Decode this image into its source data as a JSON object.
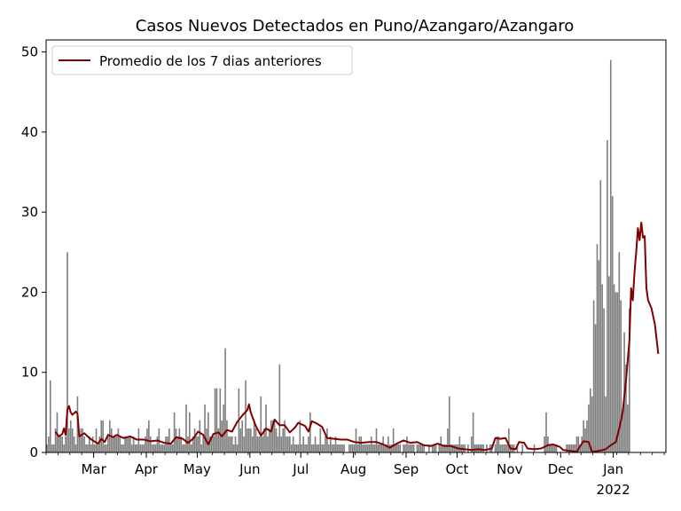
{
  "chart_data": {
    "type": "bar",
    "title": "Casos Nuevos Detectados en Puno/Azangaro/Azangaro",
    "xlabel": "",
    "ylabel": "",
    "x_range": [
      "2021-02-01",
      "2022-01-31"
    ],
    "ylim": [
      0,
      51.5
    ],
    "grid": false,
    "legend_placement": "top-left",
    "x_tick_labels": [
      {
        "date": "2021-03-01",
        "label": "Mar"
      },
      {
        "date": "2021-04-01",
        "label": "Apr"
      },
      {
        "date": "2021-05-01",
        "label": "May"
      },
      {
        "date": "2021-06-01",
        "label": "Jun"
      },
      {
        "date": "2021-07-01",
        "label": "Jul"
      },
      {
        "date": "2021-08-01",
        "label": "Aug"
      },
      {
        "date": "2021-09-01",
        "label": "Sep"
      },
      {
        "date": "2021-10-01",
        "label": "Oct"
      },
      {
        "date": "2021-11-01",
        "label": "Nov"
      },
      {
        "date": "2021-12-01",
        "label": "Dec"
      },
      {
        "date": "2022-01-01",
        "label": "Jan"
      }
    ],
    "x_year_label": {
      "date": "2022-01-01",
      "label": "2022"
    },
    "y_ticks": [
      0,
      10,
      20,
      30,
      40,
      50
    ],
    "bar_color": "#808080",
    "line_color": "#800000",
    "bar_series": {
      "start": "2021-02-01",
      "values": [
        1,
        2,
        9,
        1,
        1,
        3,
        5,
        2,
        2,
        2,
        1,
        2,
        25,
        3,
        4,
        3,
        2,
        1,
        7,
        2,
        3,
        3,
        2,
        1,
        1,
        2,
        1,
        2,
        1,
        3,
        1,
        2,
        4,
        4,
        1,
        1,
        2,
        4,
        3,
        2,
        2,
        2,
        3,
        2,
        1,
        1,
        2,
        2,
        2,
        2,
        1,
        2,
        1,
        1,
        3,
        1,
        1,
        1,
        2,
        3,
        4,
        2,
        1,
        1,
        1,
        2,
        3,
        1,
        1,
        1,
        2,
        2,
        3,
        1,
        1,
        5,
        3,
        2,
        3,
        2,
        1,
        1,
        6,
        2,
        5,
        1,
        2,
        3,
        2,
        2,
        4,
        1,
        2,
        6,
        3,
        5,
        2,
        2,
        2,
        8,
        8,
        3,
        8,
        4,
        6,
        13,
        4,
        2,
        2,
        2,
        1,
        2,
        1,
        8,
        3,
        4,
        2,
        9,
        3,
        3,
        3,
        2,
        4,
        3,
        2,
        2,
        7,
        2,
        3,
        6,
        2,
        3,
        4,
        4,
        4,
        3,
        2,
        11,
        2,
        3,
        4,
        2,
        2,
        2,
        1,
        2,
        1,
        1,
        1,
        4,
        1,
        2,
        1,
        1,
        2,
        5,
        1,
        1,
        2,
        1,
        1,
        3,
        1,
        1,
        2,
        3,
        1,
        2,
        1,
        1,
        2,
        1,
        1,
        1,
        1,
        1,
        0,
        0,
        1,
        1,
        1,
        1,
        3,
        1,
        2,
        2,
        1,
        1,
        1,
        1,
        1,
        2,
        1,
        1,
        3,
        1,
        1,
        1,
        2,
        1,
        1,
        2,
        1,
        1,
        3,
        1,
        1,
        1,
        1,
        0,
        1,
        1,
        2,
        1,
        1,
        1,
        1,
        0,
        1,
        1,
        1,
        1,
        1,
        0,
        0,
        1,
        0,
        1,
        1,
        1,
        0,
        1,
        2,
        1,
        1,
        1,
        3,
        7,
        1,
        1,
        1,
        1,
        1,
        2,
        1,
        1,
        1,
        0,
        1,
        0,
        2,
        5,
        1,
        1,
        1,
        1,
        1,
        1,
        0,
        1,
        0,
        1,
        1,
        0,
        1,
        2,
        2,
        1,
        1,
        1,
        1,
        1,
        3,
        1,
        1,
        1,
        0,
        1,
        0,
        0,
        1,
        0,
        0,
        0,
        0,
        0,
        0,
        1,
        0,
        0,
        0,
        0,
        0,
        2,
        5,
        2,
        1,
        1,
        1,
        1,
        1,
        0,
        0,
        0,
        0,
        0,
        1,
        1,
        1,
        1,
        1,
        1,
        2,
        2,
        1,
        2,
        4,
        3,
        4,
        6,
        8,
        7,
        19,
        16,
        26,
        24,
        34,
        21,
        18,
        7,
        39,
        22,
        49,
        32,
        21,
        20,
        20,
        25,
        19,
        5,
        15,
        11,
        6,
        18
      ]
    },
    "line_series": {
      "name": "Promedio de los 7 dias anteriores",
      "points": [
        [
          "2021-02-06",
          2.6
        ],
        [
          "2021-02-08",
          2.0
        ],
        [
          "2021-02-10",
          2.3
        ],
        [
          "2021-02-11",
          3.0
        ],
        [
          "2021-02-12",
          2.2
        ],
        [
          "2021-02-13",
          5.3
        ],
        [
          "2021-02-14",
          5.8
        ],
        [
          "2021-02-15",
          5.0
        ],
        [
          "2021-02-16",
          4.7
        ],
        [
          "2021-02-18",
          5.1
        ],
        [
          "2021-02-19",
          4.8
        ],
        [
          "2021-02-20",
          2.0
        ],
        [
          "2021-02-23",
          2.4
        ],
        [
          "2021-02-26",
          1.8
        ],
        [
          "2021-02-28",
          1.5
        ],
        [
          "2021-03-03",
          1.1
        ],
        [
          "2021-03-05",
          1.7
        ],
        [
          "2021-03-07",
          1.3
        ],
        [
          "2021-03-09",
          2.2
        ],
        [
          "2021-03-12",
          1.9
        ],
        [
          "2021-03-14",
          2.2
        ],
        [
          "2021-03-18",
          1.8
        ],
        [
          "2021-03-22",
          2.0
        ],
        [
          "2021-03-26",
          1.6
        ],
        [
          "2021-03-30",
          1.6
        ],
        [
          "2021-04-03",
          1.4
        ],
        [
          "2021-04-07",
          1.5
        ],
        [
          "2021-04-11",
          1.2
        ],
        [
          "2021-04-15",
          1.1
        ],
        [
          "2021-04-18",
          1.9
        ],
        [
          "2021-04-22",
          1.7
        ],
        [
          "2021-04-25",
          1.2
        ],
        [
          "2021-04-28",
          1.7
        ],
        [
          "2021-05-01",
          2.6
        ],
        [
          "2021-05-04",
          2.2
        ],
        [
          "2021-05-07",
          1.0
        ],
        [
          "2021-05-10",
          2.3
        ],
        [
          "2021-05-13",
          2.5
        ],
        [
          "2021-05-15",
          2.0
        ],
        [
          "2021-05-18",
          2.8
        ],
        [
          "2021-05-21",
          2.6
        ],
        [
          "2021-05-24",
          3.8
        ],
        [
          "2021-05-27",
          4.6
        ],
        [
          "2021-05-30",
          5.3
        ],
        [
          "2021-05-31",
          6.0
        ],
        [
          "2021-06-01",
          5.0
        ],
        [
          "2021-06-04",
          3.3
        ],
        [
          "2021-06-07",
          2.1
        ],
        [
          "2021-06-10",
          3.0
        ],
        [
          "2021-06-13",
          2.6
        ],
        [
          "2021-06-15",
          4.1
        ],
        [
          "2021-06-18",
          3.4
        ],
        [
          "2021-06-21",
          3.4
        ],
        [
          "2021-06-24",
          2.5
        ],
        [
          "2021-06-27",
          3.1
        ],
        [
          "2021-06-29",
          3.7
        ],
        [
          "2021-07-01",
          3.5
        ],
        [
          "2021-07-03",
          3.3
        ],
        [
          "2021-07-05",
          2.6
        ],
        [
          "2021-07-07",
          3.9
        ],
        [
          "2021-07-10",
          3.6
        ],
        [
          "2021-07-13",
          3.2
        ],
        [
          "2021-07-16",
          1.8
        ],
        [
          "2021-07-20",
          1.7
        ],
        [
          "2021-07-24",
          1.6
        ],
        [
          "2021-07-28",
          1.6
        ],
        [
          "2021-08-01",
          1.3
        ],
        [
          "2021-08-05",
          1.2
        ],
        [
          "2021-08-10",
          1.3
        ],
        [
          "2021-08-14",
          1.3
        ],
        [
          "2021-08-18",
          1.0
        ],
        [
          "2021-08-22",
          0.6
        ],
        [
          "2021-08-26",
          1.1
        ],
        [
          "2021-08-30",
          1.5
        ],
        [
          "2021-09-03",
          1.2
        ],
        [
          "2021-09-07",
          1.3
        ],
        [
          "2021-09-11",
          0.9
        ],
        [
          "2021-09-15",
          0.8
        ],
        [
          "2021-09-19",
          1.1
        ],
        [
          "2021-09-23",
          0.8
        ],
        [
          "2021-09-27",
          0.8
        ],
        [
          "2021-10-01",
          0.5
        ],
        [
          "2021-10-05",
          0.4
        ],
        [
          "2021-10-09",
          0.3
        ],
        [
          "2021-10-13",
          0.4
        ],
        [
          "2021-10-17",
          0.3
        ],
        [
          "2021-10-21",
          0.5
        ],
        [
          "2021-10-23",
          1.8
        ],
        [
          "2021-10-26",
          1.7
        ],
        [
          "2021-10-29",
          1.8
        ],
        [
          "2021-11-01",
          0.5
        ],
        [
          "2021-11-04",
          0.4
        ],
        [
          "2021-11-06",
          1.3
        ],
        [
          "2021-11-09",
          1.2
        ],
        [
          "2021-11-11",
          0.5
        ],
        [
          "2021-11-15",
          0.4
        ],
        [
          "2021-11-19",
          0.5
        ],
        [
          "2021-11-23",
          0.9
        ],
        [
          "2021-11-26",
          1.0
        ],
        [
          "2021-11-30",
          0.7
        ],
        [
          "2021-12-02",
          0.3
        ],
        [
          "2021-12-06",
          0.2
        ],
        [
          "2021-12-10",
          0.1
        ],
        [
          "2021-12-12",
          0.8
        ],
        [
          "2021-12-14",
          1.4
        ],
        [
          "2021-12-17",
          1.3
        ],
        [
          "2021-12-19",
          0.1
        ],
        [
          "2021-12-23",
          0.2
        ],
        [
          "2021-12-27",
          0.4
        ],
        [
          "2021-12-30",
          0.9
        ],
        [
          "2022-01-02",
          1.3
        ],
        [
          "2022-01-04",
          3.0
        ],
        [
          "2022-01-06",
          5.0
        ],
        [
          "2022-01-08",
          9.0
        ],
        [
          "2022-01-10",
          14.0
        ],
        [
          "2022-01-11",
          20.5
        ],
        [
          "2022-01-12",
          19.0
        ],
        [
          "2022-01-13",
          22.5
        ],
        [
          "2022-01-14",
          25.0
        ],
        [
          "2022-01-15",
          28.0
        ],
        [
          "2022-01-16",
          26.5
        ],
        [
          "2022-01-17",
          28.7
        ],
        [
          "2022-01-18",
          26.8
        ],
        [
          "2022-01-19",
          27.0
        ],
        [
          "2022-01-20",
          20.5
        ],
        [
          "2022-01-21",
          19.0
        ],
        [
          "2022-01-23",
          18.0
        ],
        [
          "2022-01-25",
          16.0
        ],
        [
          "2022-01-27",
          12.3
        ]
      ]
    }
  }
}
